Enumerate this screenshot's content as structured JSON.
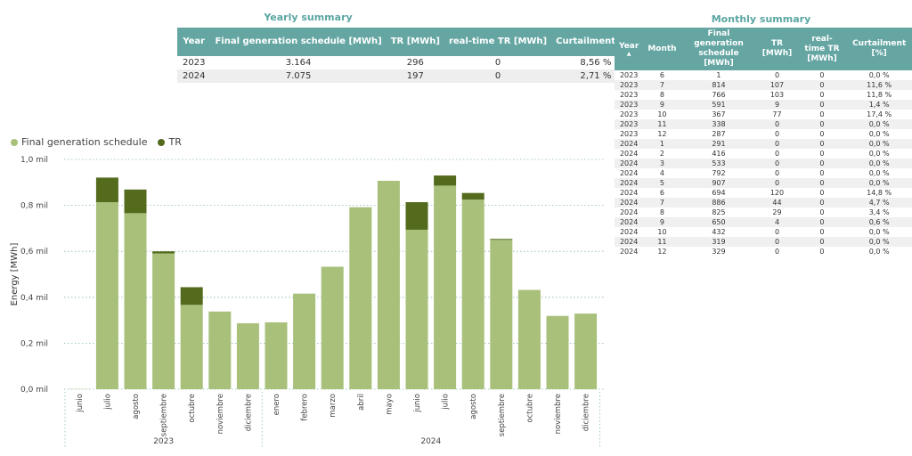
{
  "yearly": {
    "title": "Yearly summary",
    "headers": [
      "Year",
      "Final generation schedule [MWh]",
      "TR [MWh]",
      "real-time TR [MWh]",
      "Curtailment [%]"
    ],
    "rows": [
      [
        "2023",
        "3.164",
        "296",
        "0",
        "8,56 %"
      ],
      [
        "2024",
        "7.075",
        "197",
        "0",
        "2,71 %"
      ]
    ]
  },
  "monthly": {
    "title": "Monthly summary",
    "headers": [
      "Year",
      "Month",
      "Final generation schedule [MWh]",
      "TR [MWh]",
      "real-time TR [MWh]",
      "Curtailment [%]"
    ],
    "rows": [
      [
        "2023",
        "6",
        "1",
        "0",
        "0",
        "0,0 %"
      ],
      [
        "2023",
        "7",
        "814",
        "107",
        "0",
        "11,6 %"
      ],
      [
        "2023",
        "8",
        "766",
        "103",
        "0",
        "11,8 %"
      ],
      [
        "2023",
        "9",
        "591",
        "9",
        "0",
        "1,4 %"
      ],
      [
        "2023",
        "10",
        "367",
        "77",
        "0",
        "17,4 %"
      ],
      [
        "2023",
        "11",
        "338",
        "0",
        "0",
        "0,0 %"
      ],
      [
        "2023",
        "12",
        "287",
        "0",
        "0",
        "0,0 %"
      ],
      [
        "2024",
        "1",
        "291",
        "0",
        "0",
        "0,0 %"
      ],
      [
        "2024",
        "2",
        "416",
        "0",
        "0",
        "0,0 %"
      ],
      [
        "2024",
        "3",
        "533",
        "0",
        "0",
        "0,0 %"
      ],
      [
        "2024",
        "4",
        "792",
        "0",
        "0",
        "0,0 %"
      ],
      [
        "2024",
        "5",
        "907",
        "0",
        "0",
        "0,0 %"
      ],
      [
        "2024",
        "6",
        "694",
        "120",
        "0",
        "14,8 %"
      ],
      [
        "2024",
        "7",
        "886",
        "44",
        "0",
        "4,7 %"
      ],
      [
        "2024",
        "8",
        "825",
        "29",
        "0",
        "3,4 %"
      ],
      [
        "2024",
        "9",
        "650",
        "4",
        "0",
        "0,6 %"
      ],
      [
        "2024",
        "10",
        "432",
        "0",
        "0",
        "0,0 %"
      ],
      [
        "2024",
        "11",
        "319",
        "0",
        "0",
        "0,0 %"
      ],
      [
        "2024",
        "12",
        "329",
        "0",
        "0",
        "0,0 %"
      ]
    ]
  },
  "chart_data": {
    "type": "bar",
    "stacked": true,
    "categories": [
      "junio",
      "julio",
      "agosto",
      "septiembre",
      "octubre",
      "noviembre",
      "diciembre",
      "enero",
      "febrero",
      "marzo",
      "abril",
      "mayo",
      "junio",
      "julio",
      "agosto",
      "septiembre",
      "octubre",
      "noviembre",
      "diciembre"
    ],
    "groups": [
      {
        "label": "2023",
        "start": 0,
        "end": 6
      },
      {
        "label": "2024",
        "start": 7,
        "end": 18
      }
    ],
    "series": [
      {
        "name": "Final generation schedule",
        "color": "#a8c07a",
        "values": [
          1,
          814,
          766,
          591,
          367,
          338,
          287,
          291,
          416,
          533,
          792,
          907,
          694,
          886,
          825,
          650,
          432,
          319,
          329
        ]
      },
      {
        "name": "TR",
        "color": "#546b1e",
        "values": [
          0,
          107,
          103,
          9,
          77,
          0,
          0,
          0,
          0,
          0,
          0,
          0,
          120,
          44,
          29,
          4,
          0,
          0,
          0
        ]
      }
    ],
    "yticks": [
      0,
      200,
      400,
      600,
      800,
      1000
    ],
    "ytick_labels": [
      "0,0 mil",
      "0,2 mil",
      "0,4 mil",
      "0,6 mil",
      "0,8 mil",
      "1,0 mil"
    ],
    "ylim": [
      0,
      1000
    ],
    "ylabel": "Energy [MWh]",
    "xlabel": "",
    "grid": true,
    "legend_position": "top-left"
  }
}
